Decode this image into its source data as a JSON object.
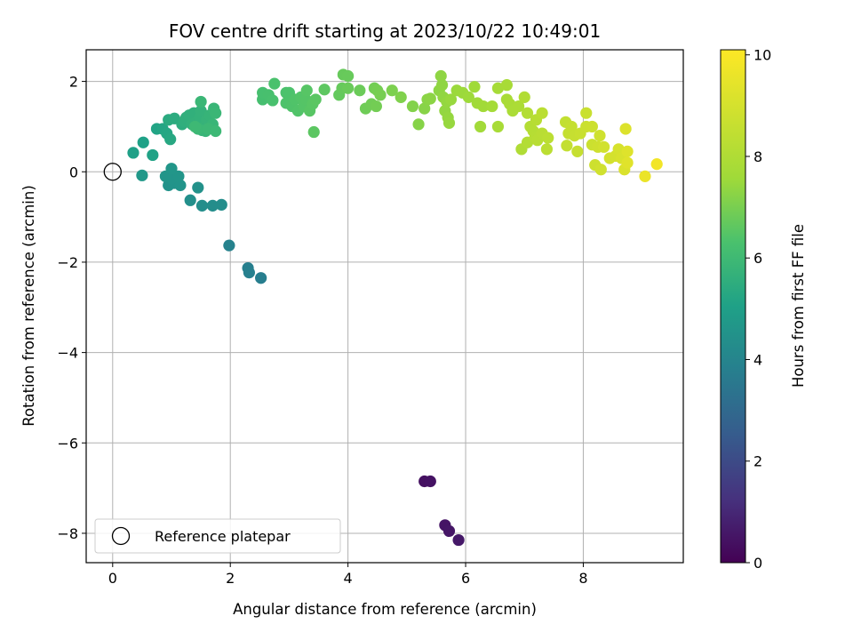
{
  "chart_data": {
    "type": "scatter",
    "title": "FOV centre drift starting at 2023/10/22 10:49:01",
    "xlabel": "Angular distance from reference (arcmin)",
    "ylabel": "Rotation from reference (arcmin)",
    "xlim": [
      -0.45,
      9.7
    ],
    "ylim": [
      -8.65,
      2.7
    ],
    "x_ticks": [
      0,
      2,
      4,
      6,
      8
    ],
    "y_ticks": [
      2,
      0,
      -2,
      -4,
      -6,
      -8
    ],
    "grid": true,
    "colormap": "viridis",
    "colorbar": {
      "label": "Hours from first FF file",
      "range": [
        0,
        10.1
      ],
      "ticks": [
        0,
        2,
        4,
        6,
        8,
        10
      ]
    },
    "legend": {
      "placement": "lower-left",
      "entries": [
        "Reference platepar"
      ]
    },
    "reference_point": {
      "x": 0,
      "y": 0
    },
    "points": [
      [
        5.3,
        -6.85,
        0.4
      ],
      [
        5.4,
        -6.85,
        0.45
      ],
      [
        5.65,
        -7.82,
        0.5
      ],
      [
        5.72,
        -7.95,
        0.55
      ],
      [
        5.88,
        -8.15,
        0.6
      ],
      [
        2.52,
        -2.35,
        3.75
      ],
      [
        2.3,
        -2.13,
        3.8
      ],
      [
        2.32,
        -2.23,
        3.82
      ],
      [
        1.98,
        -1.63,
        3.9
      ],
      [
        1.7,
        -0.75,
        4.3
      ],
      [
        1.85,
        -0.73,
        4.32
      ],
      [
        1.52,
        -0.75,
        4.35
      ],
      [
        1.32,
        -0.63,
        4.4
      ],
      [
        1.45,
        -0.35,
        4.45
      ],
      [
        0.95,
        -0.3,
        4.5
      ],
      [
        1.05,
        -0.25,
        4.52
      ],
      [
        1.15,
        -0.3,
        4.55
      ],
      [
        1.0,
        -0.15,
        4.58
      ],
      [
        0.9,
        -0.1,
        4.6
      ],
      [
        1.12,
        -0.1,
        4.62
      ],
      [
        1.0,
        0.07,
        4.65
      ],
      [
        0.5,
        -0.08,
        4.7
      ],
      [
        0.35,
        0.42,
        5.0
      ],
      [
        0.52,
        0.65,
        5.05
      ],
      [
        0.68,
        0.37,
        5.1
      ],
      [
        0.75,
        0.95,
        5.15
      ],
      [
        0.85,
        0.95,
        5.2
      ],
      [
        0.92,
        0.85,
        5.25
      ],
      [
        0.98,
        0.72,
        5.3
      ],
      [
        0.95,
        1.15,
        5.4
      ],
      [
        1.05,
        1.18,
        5.45
      ],
      [
        1.18,
        1.05,
        5.5
      ],
      [
        1.22,
        1.12,
        5.55
      ],
      [
        1.25,
        1.2,
        5.58
      ],
      [
        1.3,
        1.25,
        5.6
      ],
      [
        1.38,
        1.3,
        5.62
      ],
      [
        1.35,
        1.05,
        5.64
      ],
      [
        1.42,
        1.1,
        5.66
      ],
      [
        1.48,
        1.2,
        5.68
      ],
      [
        1.5,
        1.35,
        5.7
      ],
      [
        1.55,
        1.0,
        5.72
      ],
      [
        1.6,
        1.15,
        5.74
      ],
      [
        1.65,
        1.25,
        5.76
      ],
      [
        1.52,
        0.92,
        5.78
      ],
      [
        1.58,
        0.9,
        5.8
      ],
      [
        1.7,
        1.05,
        5.82
      ],
      [
        1.72,
        1.4,
        5.84
      ],
      [
        1.75,
        1.3,
        5.86
      ],
      [
        1.5,
        1.55,
        5.88
      ],
      [
        1.45,
        0.95,
        5.9
      ],
      [
        1.62,
        0.95,
        5.92
      ],
      [
        1.75,
        0.9,
        5.94
      ],
      [
        1.4,
        1.0,
        5.96
      ],
      [
        2.55,
        1.6,
        6.2
      ],
      [
        2.55,
        1.75,
        6.22
      ],
      [
        2.65,
        1.7,
        6.25
      ],
      [
        2.72,
        1.58,
        6.28
      ],
      [
        2.75,
        1.95,
        6.3
      ],
      [
        2.95,
        1.75,
        6.32
      ],
      [
        3.0,
        1.75,
        6.34
      ],
      [
        2.95,
        1.52,
        6.36
      ],
      [
        3.05,
        1.45,
        6.38
      ],
      [
        3.1,
        1.6,
        6.4
      ],
      [
        3.15,
        1.35,
        6.42
      ],
      [
        3.2,
        1.65,
        6.44
      ],
      [
        3.25,
        1.45,
        6.46
      ],
      [
        3.28,
        1.6,
        6.48
      ],
      [
        3.3,
        1.8,
        6.5
      ],
      [
        3.35,
        1.35,
        6.52
      ],
      [
        3.4,
        1.5,
        6.54
      ],
      [
        3.45,
        1.6,
        6.56
      ],
      [
        3.42,
        0.88,
        6.58
      ],
      [
        3.6,
        1.82,
        6.6
      ],
      [
        3.85,
        1.7,
        6.7
      ],
      [
        3.9,
        1.85,
        6.72
      ],
      [
        3.92,
        2.15,
        6.74
      ],
      [
        4.0,
        2.12,
        6.76
      ],
      [
        4.0,
        1.85,
        6.78
      ],
      [
        4.2,
        1.8,
        6.8
      ],
      [
        4.3,
        1.4,
        6.85
      ],
      [
        4.4,
        1.5,
        6.88
      ],
      [
        4.45,
        1.85,
        6.9
      ],
      [
        4.48,
        1.45,
        6.92
      ],
      [
        4.5,
        1.8,
        6.95
      ],
      [
        4.55,
        1.7,
        6.98
      ],
      [
        4.75,
        1.8,
        7.05
      ],
      [
        4.9,
        1.65,
        7.1
      ],
      [
        5.1,
        1.45,
        7.15
      ],
      [
        5.2,
        1.05,
        7.2
      ],
      [
        5.3,
        1.4,
        7.22
      ],
      [
        5.35,
        1.6,
        7.25
      ],
      [
        5.4,
        1.62,
        7.28
      ],
      [
        5.55,
        1.8,
        7.3
      ],
      [
        5.58,
        2.12,
        7.32
      ],
      [
        5.6,
        1.92,
        7.34
      ],
      [
        5.62,
        1.65,
        7.36
      ],
      [
        5.65,
        1.35,
        7.38
      ],
      [
        5.68,
        1.55,
        7.4
      ],
      [
        5.7,
        1.2,
        7.42
      ],
      [
        5.72,
        1.08,
        7.44
      ],
      [
        5.75,
        1.6,
        7.46
      ],
      [
        5.85,
        1.8,
        7.5
      ],
      [
        5.95,
        1.75,
        7.52
      ],
      [
        6.05,
        1.65,
        7.55
      ],
      [
        6.15,
        1.88,
        7.58
      ],
      [
        6.2,
        1.52,
        7.6
      ],
      [
        6.25,
        1.0,
        7.62
      ],
      [
        6.3,
        1.45,
        7.64
      ],
      [
        6.45,
        1.45,
        7.7
      ],
      [
        6.55,
        1.85,
        7.75
      ],
      [
        6.55,
        1.0,
        7.78
      ],
      [
        6.7,
        1.92,
        7.8
      ],
      [
        6.7,
        1.6,
        7.82
      ],
      [
        6.75,
        1.5,
        7.85
      ],
      [
        6.8,
        1.35,
        7.88
      ],
      [
        6.9,
        1.45,
        7.9
      ],
      [
        6.95,
        0.5,
        8.0
      ],
      [
        7.0,
        1.65,
        8.05
      ],
      [
        7.05,
        1.3,
        8.08
      ],
      [
        7.05,
        0.65,
        8.1
      ],
      [
        7.1,
        1.0,
        8.12
      ],
      [
        7.15,
        0.9,
        8.15
      ],
      [
        7.18,
        0.75,
        8.18
      ],
      [
        7.2,
        1.15,
        8.2
      ],
      [
        7.22,
        0.7,
        8.22
      ],
      [
        7.3,
        0.85,
        8.25
      ],
      [
        7.3,
        1.3,
        8.28
      ],
      [
        7.38,
        0.5,
        8.3
      ],
      [
        7.4,
        0.75,
        8.32
      ],
      [
        7.7,
        1.1,
        8.5
      ],
      [
        7.72,
        0.58,
        8.52
      ],
      [
        7.75,
        0.85,
        8.55
      ],
      [
        7.8,
        1.0,
        8.58
      ],
      [
        7.85,
        0.8,
        8.6
      ],
      [
        7.9,
        0.45,
        8.62
      ],
      [
        7.95,
        0.85,
        8.65
      ],
      [
        8.05,
        1.3,
        8.7
      ],
      [
        8.05,
        1.0,
        8.72
      ],
      [
        8.15,
        0.6,
        8.75
      ],
      [
        8.15,
        1.0,
        8.78
      ],
      [
        8.2,
        0.15,
        8.8
      ],
      [
        8.25,
        0.55,
        8.82
      ],
      [
        8.28,
        0.8,
        8.85
      ],
      [
        8.3,
        0.05,
        8.88
      ],
      [
        8.35,
        0.55,
        8.9
      ],
      [
        8.45,
        0.3,
        8.95
      ],
      [
        8.55,
        0.35,
        9.0
      ],
      [
        8.6,
        0.5,
        9.05
      ],
      [
        8.65,
        0.3,
        9.1
      ],
      [
        8.7,
        0.05,
        9.15
      ],
      [
        8.72,
        0.95,
        9.2
      ],
      [
        8.75,
        0.45,
        9.25
      ],
      [
        8.75,
        0.2,
        9.3
      ],
      [
        9.05,
        -0.1,
        9.6
      ],
      [
        9.25,
        0.17,
        9.8
      ]
    ]
  }
}
